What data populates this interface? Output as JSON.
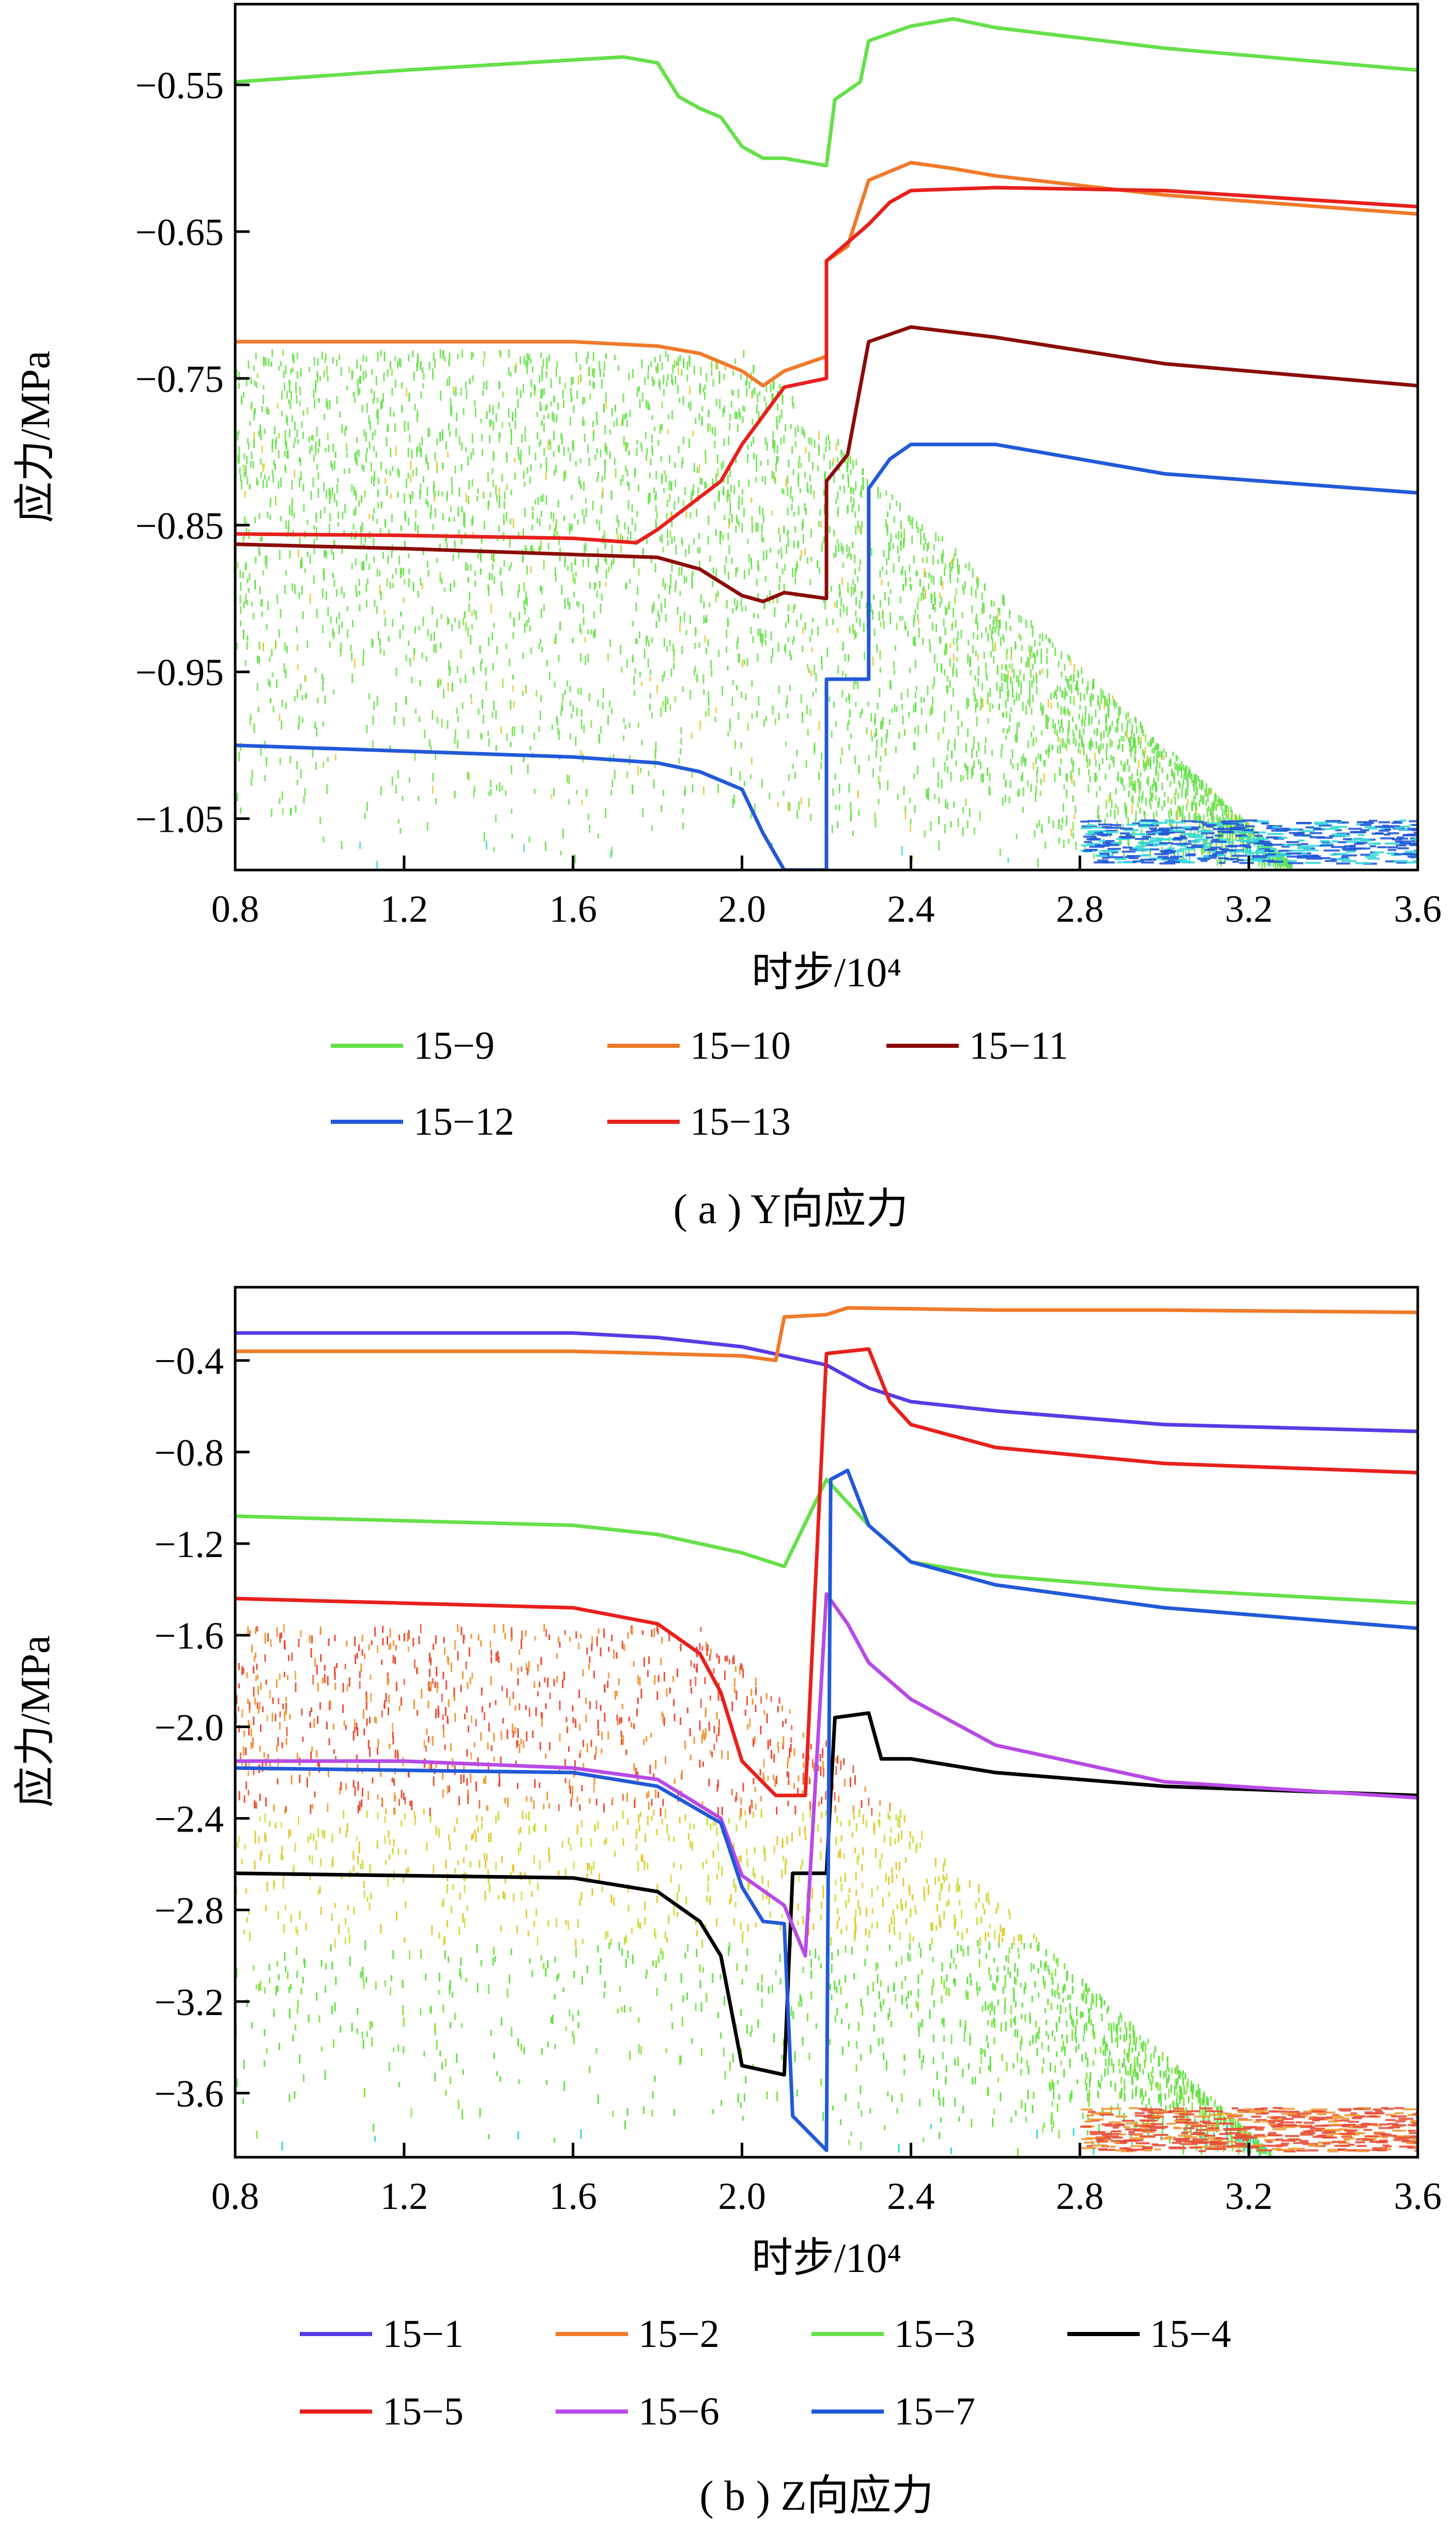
{
  "chart_data": [
    {
      "type": "line",
      "caption": "( a ) Y向应力",
      "xlabel": "时步/10⁴",
      "ylabel": "应力/MPa",
      "xlim": [
        0.8,
        3.6
      ],
      "ylim": [
        -1.085,
        -0.495
      ],
      "x_ticks": [
        "0.8",
        "1.2",
        "1.6",
        "2.0",
        "2.4",
        "2.8",
        "3.2",
        "3.6"
      ],
      "y_ticks": [
        "-0.55",
        "-0.65",
        "-0.75",
        "-0.85",
        "-0.95",
        "-1.05"
      ],
      "grid": false,
      "legend_position": "below",
      "series": [
        {
          "name": "15-9",
          "color": "#66e04a",
          "points": [
            [
              0.8,
              -0.548
            ],
            [
              1.2,
              -0.54
            ],
            [
              1.6,
              -0.533
            ],
            [
              1.72,
              -0.531
            ],
            [
              1.8,
              -0.535
            ],
            [
              1.85,
              -0.558
            ],
            [
              1.9,
              -0.566
            ],
            [
              1.95,
              -0.572
            ],
            [
              2.0,
              -0.592
            ],
            [
              2.05,
              -0.6
            ],
            [
              2.1,
              -0.6
            ],
            [
              2.2,
              -0.605
            ],
            [
              2.22,
              -0.56
            ],
            [
              2.28,
              -0.548
            ],
            [
              2.3,
              -0.52
            ],
            [
              2.4,
              -0.51
            ],
            [
              2.5,
              -0.505
            ],
            [
              2.6,
              -0.511
            ],
            [
              3.0,
              -0.525
            ],
            [
              3.6,
              -0.54
            ]
          ]
        },
        {
          "name": "15-10",
          "color": "#f07a2a",
          "points": [
            [
              0.8,
              -0.725
            ],
            [
              1.2,
              -0.725
            ],
            [
              1.6,
              -0.725
            ],
            [
              1.8,
              -0.728
            ],
            [
              1.9,
              -0.733
            ],
            [
              2.0,
              -0.745
            ],
            [
              2.05,
              -0.755
            ],
            [
              2.1,
              -0.745
            ],
            [
              2.2,
              -0.735
            ],
            [
              2.2,
              -0.67
            ],
            [
              2.25,
              -0.66
            ],
            [
              2.3,
              -0.615
            ],
            [
              2.4,
              -0.603
            ],
            [
              2.5,
              -0.607
            ],
            [
              2.6,
              -0.612
            ],
            [
              3.0,
              -0.625
            ],
            [
              3.6,
              -0.638
            ]
          ]
        },
        {
          "name": "15-11",
          "color": "#8b0c08",
          "points": [
            [
              0.8,
              -0.863
            ],
            [
              1.2,
              -0.866
            ],
            [
              1.6,
              -0.87
            ],
            [
              1.8,
              -0.872
            ],
            [
              1.9,
              -0.88
            ],
            [
              2.0,
              -0.898
            ],
            [
              2.05,
              -0.902
            ],
            [
              2.1,
              -0.896
            ],
            [
              2.2,
              -0.9
            ],
            [
              2.2,
              -0.82
            ],
            [
              2.25,
              -0.802
            ],
            [
              2.3,
              -0.725
            ],
            [
              2.4,
              -0.715
            ],
            [
              2.6,
              -0.722
            ],
            [
              3.0,
              -0.74
            ],
            [
              3.6,
              -0.755
            ]
          ]
        },
        {
          "name": "15-12",
          "color": "#2259d8",
          "points": [
            [
              0.8,
              -1.0
            ],
            [
              1.2,
              -1.004
            ],
            [
              1.6,
              -1.008
            ],
            [
              1.8,
              -1.012
            ],
            [
              1.9,
              -1.018
            ],
            [
              2.0,
              -1.03
            ],
            [
              2.05,
              -1.06
            ],
            [
              2.1,
              -1.085
            ],
            [
              2.2,
              -1.085
            ],
            [
              2.2,
              -0.955
            ],
            [
              2.3,
              -0.955
            ],
            [
              2.3,
              -0.825
            ],
            [
              2.35,
              -0.805
            ],
            [
              2.4,
              -0.795
            ],
            [
              2.6,
              -0.795
            ],
            [
              3.0,
              -0.815
            ],
            [
              3.6,
              -0.828
            ]
          ]
        },
        {
          "name": "15-13",
          "color": "#e8201c",
          "points": [
            [
              0.8,
              -0.856
            ],
            [
              1.2,
              -0.857
            ],
            [
              1.6,
              -0.859
            ],
            [
              1.75,
              -0.862
            ],
            [
              1.8,
              -0.853
            ],
            [
              1.85,
              -0.842
            ],
            [
              1.9,
              -0.831
            ],
            [
              1.95,
              -0.82
            ],
            [
              2.0,
              -0.795
            ],
            [
              2.1,
              -0.756
            ],
            [
              2.2,
              -0.75
            ],
            [
              2.2,
              -0.67
            ],
            [
              2.3,
              -0.645
            ],
            [
              2.35,
              -0.63
            ],
            [
              2.4,
              -0.622
            ],
            [
              2.6,
              -0.62
            ],
            [
              3.0,
              -0.622
            ],
            [
              3.6,
              -0.633
            ]
          ]
        }
      ]
    },
    {
      "type": "line",
      "caption": "( b ) Z向应力",
      "xlabel": "时步/10⁴",
      "ylabel": "应力/MPa",
      "xlim": [
        0.8,
        3.6
      ],
      "ylim": [
        -3.88,
        -0.08
      ],
      "x_ticks": [
        "0.8",
        "1.2",
        "1.6",
        "2.0",
        "2.4",
        "2.8",
        "3.2",
        "3.6"
      ],
      "y_ticks": [
        "-0.4",
        "-0.8",
        "-1.2",
        "-1.6",
        "-2.0",
        "-2.4",
        "-2.8",
        "-3.2",
        "-3.6"
      ],
      "grid": false,
      "legend_position": "below",
      "series": [
        {
          "name": "15-1",
          "color": "#5a3ae6",
          "points": [
            [
              0.8,
              -0.28
            ],
            [
              1.2,
              -0.28
            ],
            [
              1.6,
              -0.28
            ],
            [
              1.8,
              -0.3
            ],
            [
              2.0,
              -0.34
            ],
            [
              2.2,
              -0.42
            ],
            [
              2.3,
              -0.52
            ],
            [
              2.4,
              -0.58
            ],
            [
              2.6,
              -0.62
            ],
            [
              3.0,
              -0.68
            ],
            [
              3.6,
              -0.71
            ]
          ]
        },
        {
          "name": "15-2",
          "color": "#f07a2a",
          "points": [
            [
              0.8,
              -0.36
            ],
            [
              1.2,
              -0.36
            ],
            [
              1.6,
              -0.36
            ],
            [
              2.0,
              -0.38
            ],
            [
              2.08,
              -0.4
            ],
            [
              2.1,
              -0.21
            ],
            [
              2.2,
              -0.2
            ],
            [
              2.25,
              -0.17
            ],
            [
              2.6,
              -0.18
            ],
            [
              3.0,
              -0.18
            ],
            [
              3.6,
              -0.19
            ]
          ]
        },
        {
          "name": "15-3",
          "color": "#66e04a",
          "points": [
            [
              0.8,
              -1.08
            ],
            [
              1.2,
              -1.1
            ],
            [
              1.6,
              -1.12
            ],
            [
              1.8,
              -1.16
            ],
            [
              2.0,
              -1.24
            ],
            [
              2.1,
              -1.3
            ],
            [
              2.2,
              -0.92
            ],
            [
              2.3,
              -1.12
            ],
            [
              2.4,
              -1.28
            ],
            [
              2.6,
              -1.34
            ],
            [
              3.0,
              -1.4
            ],
            [
              3.6,
              -1.46
            ]
          ]
        },
        {
          "name": "15-4",
          "color": "#000000",
          "points": [
            [
              0.8,
              -2.64
            ],
            [
              1.2,
              -2.65
            ],
            [
              1.6,
              -2.66
            ],
            [
              1.8,
              -2.72
            ],
            [
              1.9,
              -2.85
            ],
            [
              1.95,
              -3.0
            ],
            [
              2.0,
              -3.48
            ],
            [
              2.1,
              -3.52
            ],
            [
              2.12,
              -2.64
            ],
            [
              2.2,
              -2.64
            ],
            [
              2.22,
              -1.96
            ],
            [
              2.3,
              -1.94
            ],
            [
              2.33,
              -2.14
            ],
            [
              2.4,
              -2.14
            ],
            [
              2.6,
              -2.2
            ],
            [
              3.0,
              -2.26
            ],
            [
              3.6,
              -2.3
            ]
          ]
        },
        {
          "name": "15-5",
          "color": "#e8201c",
          "points": [
            [
              0.8,
              -1.44
            ],
            [
              1.2,
              -1.46
            ],
            [
              1.6,
              -1.48
            ],
            [
              1.8,
              -1.55
            ],
            [
              1.9,
              -1.68
            ],
            [
              1.95,
              -1.85
            ],
            [
              2.0,
              -2.15
            ],
            [
              2.08,
              -2.3
            ],
            [
              2.15,
              -2.3
            ],
            [
              2.2,
              -0.37
            ],
            [
              2.3,
              -0.35
            ],
            [
              2.35,
              -0.58
            ],
            [
              2.4,
              -0.68
            ],
            [
              2.6,
              -0.78
            ],
            [
              3.0,
              -0.85
            ],
            [
              3.6,
              -0.89
            ]
          ]
        },
        {
          "name": "15-6",
          "color": "#b84ae6",
          "points": [
            [
              0.8,
              -2.15
            ],
            [
              1.2,
              -2.15
            ],
            [
              1.6,
              -2.18
            ],
            [
              1.8,
              -2.23
            ],
            [
              1.95,
              -2.4
            ],
            [
              2.0,
              -2.65
            ],
            [
              2.1,
              -2.78
            ],
            [
              2.15,
              -3.0
            ],
            [
              2.2,
              -1.42
            ],
            [
              2.25,
              -1.55
            ],
            [
              2.3,
              -1.72
            ],
            [
              2.4,
              -1.88
            ],
            [
              2.6,
              -2.08
            ],
            [
              3.0,
              -2.24
            ],
            [
              3.6,
              -2.31
            ]
          ]
        },
        {
          "name": "15-7",
          "color": "#2259d8",
          "points": [
            [
              0.8,
              -2.18
            ],
            [
              1.2,
              -2.19
            ],
            [
              1.6,
              -2.2
            ],
            [
              1.8,
              -2.26
            ],
            [
              1.95,
              -2.42
            ],
            [
              2.0,
              -2.7
            ],
            [
              2.05,
              -2.85
            ],
            [
              2.1,
              -2.86
            ],
            [
              2.12,
              -3.7
            ],
            [
              2.2,
              -3.85
            ],
            [
              2.21,
              -0.92
            ],
            [
              2.25,
              -0.88
            ],
            [
              2.3,
              -1.12
            ],
            [
              2.4,
              -1.28
            ],
            [
              2.6,
              -1.38
            ],
            [
              3.0,
              -1.48
            ],
            [
              3.6,
              -1.57
            ]
          ]
        }
      ]
    }
  ]
}
